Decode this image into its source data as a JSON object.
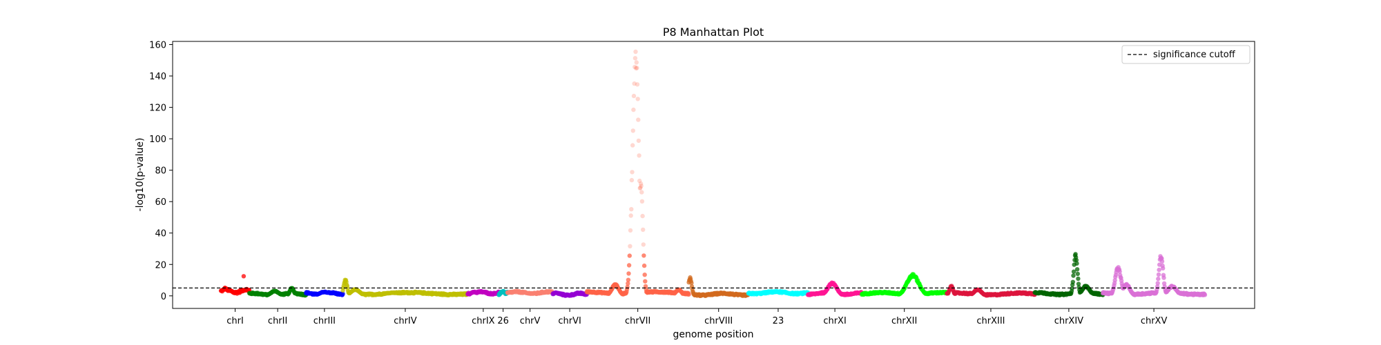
{
  "chart_data": {
    "type": "scatter",
    "title": "P8 Manhattan Plot",
    "xlabel": "genome position",
    "ylabel": "-log10(p-value)",
    "ylim": [
      -8,
      162
    ],
    "yticks": [
      0,
      20,
      40,
      60,
      80,
      100,
      120,
      140,
      160
    ],
    "xticks": [
      "chrI",
      "chrII",
      "chrIII",
      "chrIV",
      "chrIX",
      "26",
      "chrV",
      "chrVI",
      "chrVII",
      "chrVIII",
      "23",
      "chrXI",
      "chrXII",
      "chrXIII",
      "chrXIV",
      "chrXV"
    ],
    "grid": false,
    "legend": {
      "placement": "top-right",
      "entries": [
        "significance cutoff"
      ]
    },
    "significance_cutoff": 5,
    "chromosomes": [
      {
        "label": "chrI",
        "color": "#ff0000",
        "segments": [
          {
            "level": 3,
            "amp": 1.5
          }
        ],
        "peaks": [
          {
            "pos": 0.15,
            "h": 5,
            "w": 0.08
          },
          {
            "pos": 0.9,
            "h": 4,
            "w": 0.08
          },
          {
            "pos": 0.8,
            "h": 13,
            "w": 0.01
          }
        ]
      },
      {
        "label": "chrII",
        "color": "#008000",
        "segments": [
          {
            "level": 1,
            "amp": 1
          }
        ],
        "peaks": [
          {
            "pos": 0.45,
            "h": 3,
            "w": 0.1
          },
          {
            "pos": 0.75,
            "h": 5,
            "w": 0.05
          }
        ]
      },
      {
        "label": "chrIII",
        "color": "#0000ff",
        "segments": [
          {
            "level": 1.5,
            "amp": 1
          }
        ],
        "peaks": [
          {
            "pos": 0.5,
            "h": 2.5,
            "w": 0.2
          }
        ]
      },
      {
        "label": "chrIV",
        "color": "#bfbf00",
        "segments": [
          {
            "level": 1.5,
            "amp": 1
          }
        ],
        "peaks": [
          {
            "pos": 0.02,
            "h": 10,
            "w": 0.02
          },
          {
            "pos": 0.1,
            "h": 4,
            "w": 0.05
          },
          {
            "pos": 0.4,
            "h": 2,
            "w": 0.1
          }
        ]
      },
      {
        "label": "chrIX",
        "color": "#c000c0",
        "segments": [
          {
            "level": 2,
            "amp": 1
          }
        ],
        "peaks": [
          {
            "pos": 0.2,
            "h": 2.5,
            "w": 0.15
          }
        ]
      },
      {
        "label": "26",
        "color": "#00bfbf",
        "segments": [
          {
            "level": 1.5,
            "amp": 1
          }
        ],
        "peaks": [
          {
            "pos": 0.5,
            "h": 3,
            "w": 0.3
          }
        ]
      },
      {
        "label": "chrV",
        "color": "#fa8072",
        "segments": [
          {
            "level": 2,
            "amp": 1
          }
        ],
        "peaks": [
          {
            "pos": 0.5,
            "h": 1.5,
            "w": 0.3
          }
        ]
      },
      {
        "label": "chrVI",
        "color": "#9400d3",
        "segments": [
          {
            "level": 1,
            "amp": 1
          }
        ],
        "peaks": [
          {
            "pos": 0.1,
            "h": 2,
            "w": 0.1
          }
        ]
      },
      {
        "label": "chrVII",
        "color": "#ff6347",
        "segments": [
          {
            "level": 2,
            "amp": 1
          }
        ],
        "peaks": [
          {
            "pos": 0.28,
            "h": 7,
            "w": 0.05
          },
          {
            "pos": 0.48,
            "h": 150,
            "w": 0.045
          },
          {
            "pos": 0.53,
            "h": 70,
            "w": 0.03
          },
          {
            "pos": 0.9,
            "h": 4,
            "w": 0.04
          }
        ]
      },
      {
        "label": "chrVIII",
        "color": "#d2691e",
        "segments": [
          {
            "level": 1,
            "amp": 1
          }
        ],
        "peaks": [
          {
            "pos": 0.02,
            "h": 11,
            "w": 0.04
          }
        ]
      },
      {
        "label": "23",
        "color": "#00ffff",
        "segments": [
          {
            "level": 2,
            "amp": 1
          }
        ],
        "peaks": [
          {
            "pos": 0.5,
            "h": 1.5,
            "w": 0.3
          }
        ]
      },
      {
        "label": "chrXI",
        "color": "#ff1493",
        "segments": [
          {
            "level": 1.5,
            "amp": 1
          }
        ],
        "peaks": [
          {
            "pos": 0.45,
            "h": 8,
            "w": 0.12
          }
        ]
      },
      {
        "label": "chrXII",
        "color": "#00ff00",
        "segments": [
          {
            "level": 1.5,
            "amp": 1
          }
        ],
        "peaks": [
          {
            "pos": 0.6,
            "h": 13,
            "w": 0.1
          }
        ]
      },
      {
        "label": "chrXIII",
        "color": "#dc143c",
        "segments": [
          {
            "level": 1.2,
            "amp": 1
          }
        ],
        "peaks": [
          {
            "pos": 0.05,
            "h": 6,
            "w": 0.03
          },
          {
            "pos": 0.35,
            "h": 4,
            "w": 0.06
          }
        ]
      },
      {
        "label": "chrXIV",
        "color": "#006400",
        "segments": [
          {
            "level": 1.5,
            "amp": 1
          }
        ],
        "peaks": [
          {
            "pos": 0.6,
            "h": 25,
            "w": 0.04
          },
          {
            "pos": 0.75,
            "h": 6,
            "w": 0.08
          }
        ]
      },
      {
        "label": "chrXV",
        "color": "#da70d6",
        "segments": [
          {
            "level": 1.5,
            "amp": 1
          }
        ],
        "peaks": [
          {
            "pos": 0.15,
            "h": 18,
            "w": 0.04
          },
          {
            "pos": 0.23,
            "h": 7,
            "w": 0.05
          },
          {
            "pos": 0.57,
            "h": 25,
            "w": 0.03
          },
          {
            "pos": 0.68,
            "h": 6,
            "w": 0.06
          }
        ]
      }
    ]
  }
}
